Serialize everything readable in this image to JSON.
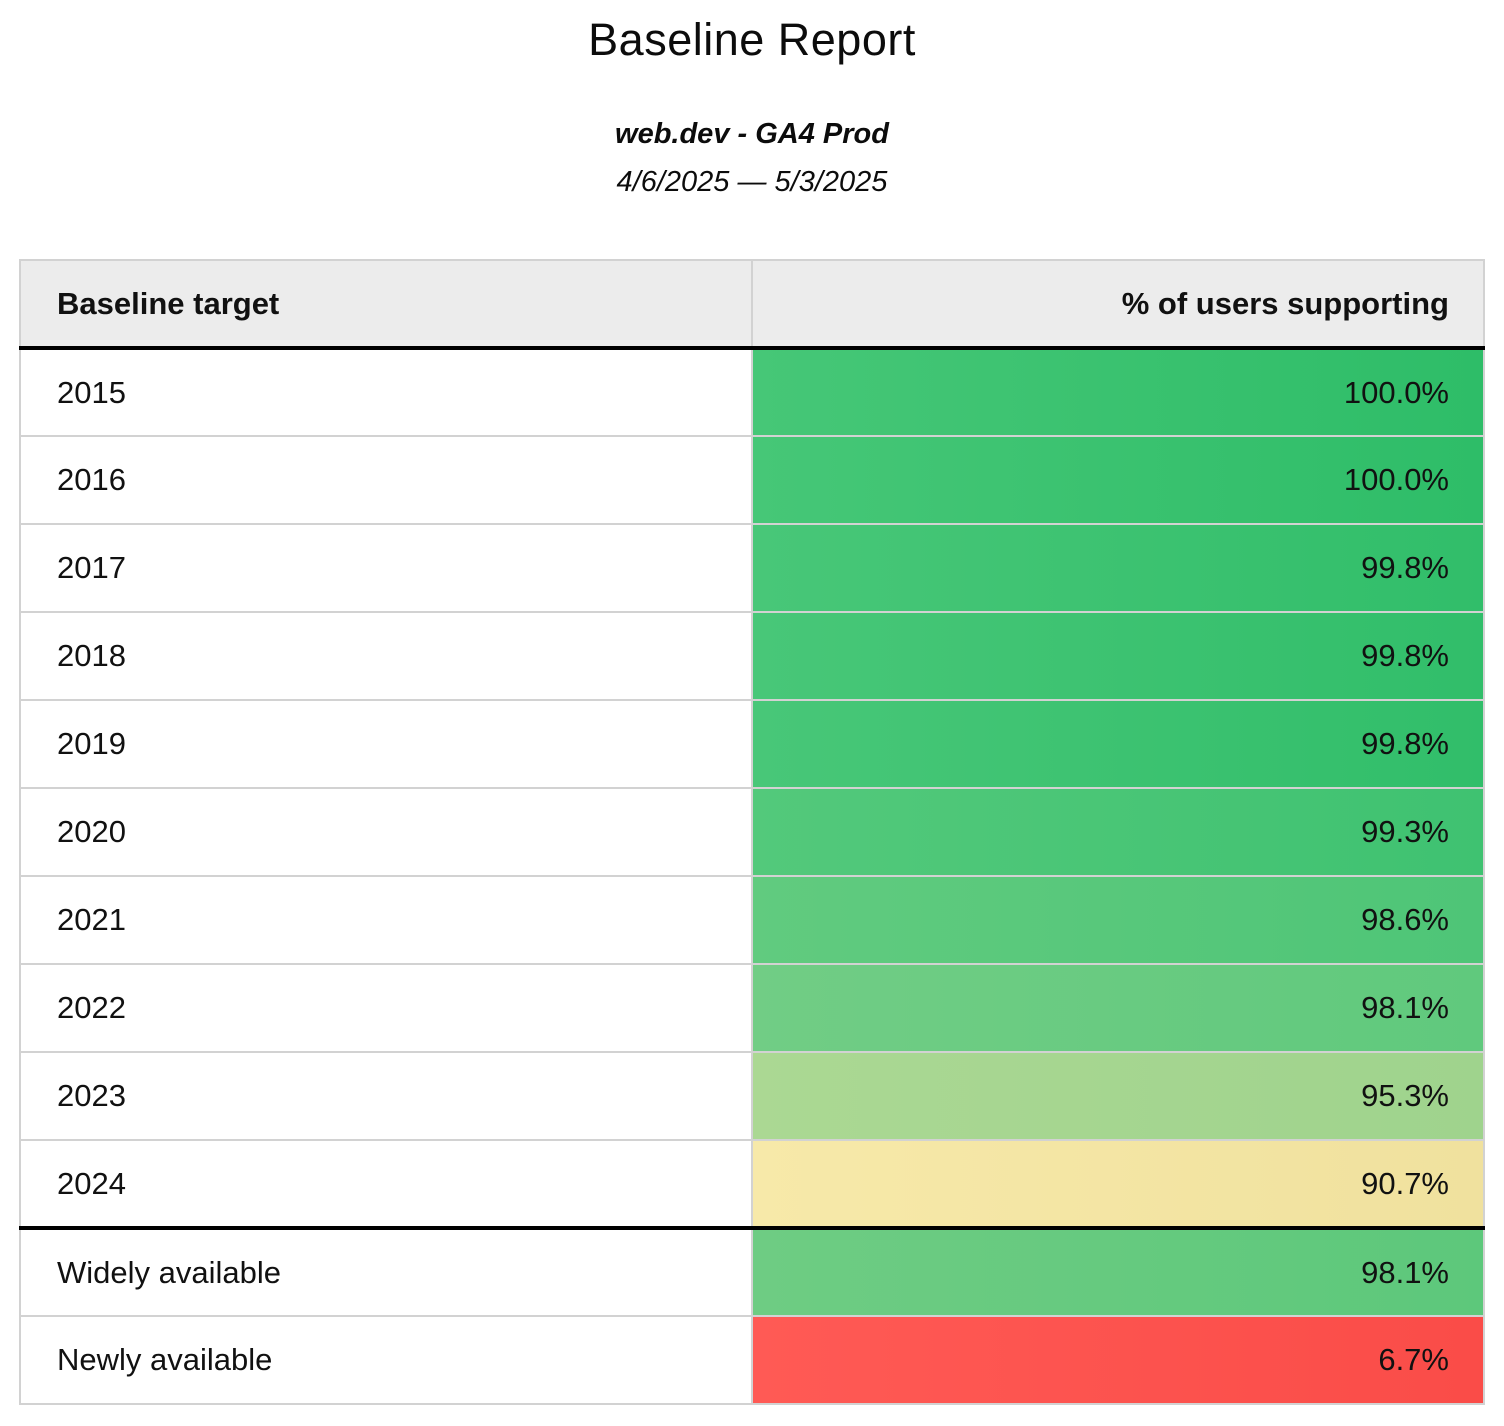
{
  "header": {
    "title": "Baseline Report",
    "subtitle": "web.dev - GA4 Prod",
    "date_range": "4/6/2025 — 5/3/2025"
  },
  "chart_data": {
    "type": "table",
    "title": "Baseline Report",
    "subtitle": "web.dev - GA4 Prod",
    "date_range": "4/6/2025 — 5/3/2025",
    "columns": [
      "Baseline target",
      "% of users supporting"
    ],
    "value_scale": "percent of users supporting, colored green (high) to yellow to red (low)",
    "rows": [
      {
        "label": "2015",
        "value": "100.0%",
        "percent": 100.0,
        "group": "year",
        "color_left": "#46c777",
        "color_right": "#2ebd68"
      },
      {
        "label": "2016",
        "value": "100.0%",
        "percent": 100.0,
        "group": "year",
        "color_left": "#46c777",
        "color_right": "#2ebd68"
      },
      {
        "label": "2017",
        "value": "99.8%",
        "percent": 99.8,
        "group": "year",
        "color_left": "#48c778",
        "color_right": "#31be6a"
      },
      {
        "label": "2018",
        "value": "99.8%",
        "percent": 99.8,
        "group": "year",
        "color_left": "#48c778",
        "color_right": "#31be6a"
      },
      {
        "label": "2019",
        "value": "99.8%",
        "percent": 99.8,
        "group": "year",
        "color_left": "#48c778",
        "color_right": "#31be6a"
      },
      {
        "label": "2020",
        "value": "99.3%",
        "percent": 99.3,
        "group": "year",
        "color_left": "#53c97b",
        "color_right": "#3fc271"
      },
      {
        "label": "2021",
        "value": "98.6%",
        "percent": 98.6,
        "group": "year",
        "color_left": "#61cb7f",
        "color_right": "#4ec577"
      },
      {
        "label": "2022",
        "value": "98.1%",
        "percent": 98.1,
        "group": "year",
        "color_left": "#71cd85",
        "color_right": "#60c97d"
      },
      {
        "label": "2023",
        "value": "95.3%",
        "percent": 95.3,
        "group": "year",
        "color_left": "#abd893",
        "color_right": "#9fd38d"
      },
      {
        "label": "2024",
        "value": "90.7%",
        "percent": 90.7,
        "group": "year-last",
        "color_left": "#f7e9a9",
        "color_right": "#f0e19e"
      },
      {
        "label": "Widely available",
        "value": "98.1%",
        "percent": 98.1,
        "group": "availability",
        "color_left": "#6ecc83",
        "color_right": "#5dc87b"
      },
      {
        "label": "Newly available",
        "value": "6.7%",
        "percent": 6.7,
        "group": "availability",
        "color_left": "#ff5a55",
        "color_right": "#fa4c48"
      }
    ],
    "style_colors": {
      "header_bg": "#ececec",
      "grid_border": "#d2d2d2",
      "strong_rule": "#000000",
      "text": "#0c0c0c"
    }
  }
}
